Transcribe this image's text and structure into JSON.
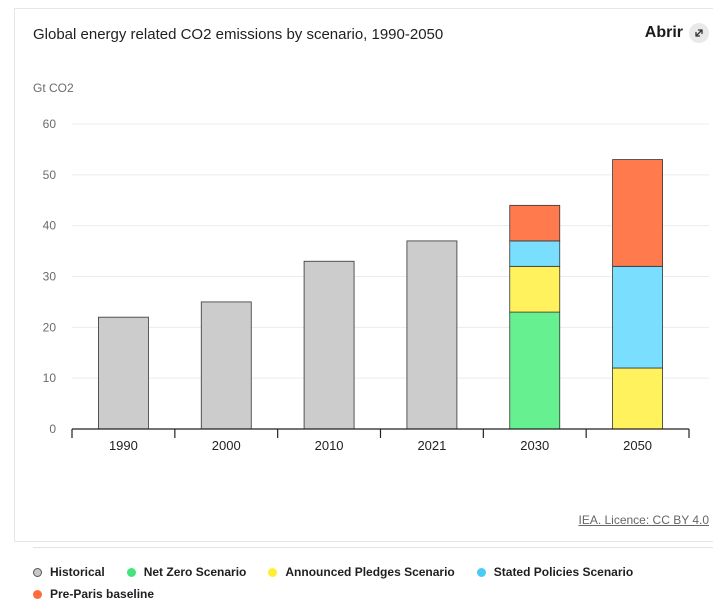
{
  "header": {
    "title": "Global energy related CO2 emissions by scenario, 1990-2050",
    "open_label": "Abrir",
    "expand_icon": "expand-arrow-icon"
  },
  "credit": "IEA. Licence: CC BY 4.0",
  "colors": {
    "Historical": "#cccccc",
    "Net Zero Scenario": "#66f08f",
    "Announced Pledges Scenario": "#fff25c",
    "Stated Policies Scenario": "#7adfff",
    "Pre-Paris baseline": "#ff7a4d",
    "legend_historical_dot": "#c8c8c8",
    "legend_netzero_dot": "#41e57a",
    "legend_pledges_dot": "#ffee33",
    "legend_stated_dot": "#47ccf5",
    "legend_preparis_dot": "#ff6a3d"
  },
  "legend": [
    {
      "label": "Historical"
    },
    {
      "label": "Net Zero Scenario"
    },
    {
      "label": "Announced Pledges Scenario"
    },
    {
      "label": "Stated Policies Scenario"
    },
    {
      "label": "Pre-Paris baseline"
    }
  ],
  "chart_data": {
    "type": "bar",
    "stacked": true,
    "ylabel": "Gt CO2",
    "ylim": [
      0,
      60
    ],
    "yticks": [
      0,
      10,
      20,
      30,
      40,
      50,
      60
    ],
    "grid": true,
    "legend_position": "bottom",
    "categories": [
      "1990",
      "2000",
      "2010",
      "2021",
      "2030",
      "2050"
    ],
    "series": [
      {
        "name": "Historical",
        "values": [
          22,
          25,
          33,
          37,
          0,
          0
        ]
      },
      {
        "name": "Net Zero Scenario",
        "values": [
          0,
          0,
          0,
          0,
          23,
          0
        ]
      },
      {
        "name": "Announced Pledges Scenario",
        "values": [
          0,
          0,
          0,
          0,
          9,
          12
        ]
      },
      {
        "name": "Stated Policies Scenario",
        "values": [
          0,
          0,
          0,
          0,
          5,
          20
        ]
      },
      {
        "name": "Pre-Paris baseline",
        "values": [
          0,
          0,
          0,
          0,
          7,
          21
        ]
      }
    ]
  }
}
